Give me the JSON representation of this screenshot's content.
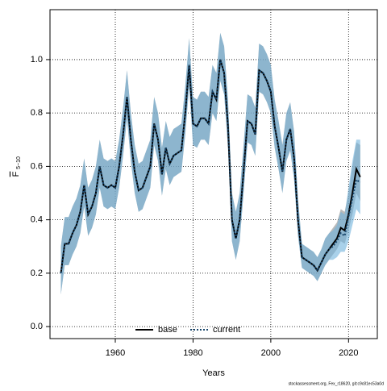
{
  "chart_data": {
    "type": "line",
    "x_label": "Years",
    "y_label": "F",
    "y_label_sub": "5−10",
    "footnote": "stockassessment.org, Fex_r18620, git:c9c81ec53a0d",
    "x": [
      1946,
      1947,
      1948,
      1949,
      1950,
      1951,
      1952,
      1953,
      1954,
      1955,
      1956,
      1957,
      1958,
      1959,
      1960,
      1961,
      1962,
      1963,
      1964,
      1965,
      1966,
      1967,
      1968,
      1969,
      1970,
      1971,
      1972,
      1973,
      1974,
      1975,
      1976,
      1977,
      1978,
      1979,
      1980,
      1981,
      1982,
      1983,
      1984,
      1985,
      1986,
      1987,
      1988,
      1989,
      1990,
      1991,
      1992,
      1993,
      1994,
      1995,
      1996,
      1997,
      1998,
      1999,
      2000,
      2001,
      2002,
      2003,
      2004,
      2005,
      2006,
      2007,
      2008,
      2009,
      2010,
      2011,
      2012,
      2013,
      2014,
      2015,
      2016,
      2017,
      2018,
      2019,
      2020,
      2021,
      2022,
      2023
    ],
    "series": [
      {
        "name": "base",
        "color": "#000000",
        "band_color": "#8c8c8c",
        "dash": false,
        "values": [
          0.2,
          0.31,
          0.31,
          0.35,
          0.38,
          0.43,
          0.53,
          0.42,
          0.45,
          0.5,
          0.6,
          0.53,
          0.52,
          0.53,
          0.52,
          0.6,
          0.72,
          0.86,
          0.7,
          0.58,
          0.51,
          0.52,
          0.56,
          0.6,
          0.76,
          0.7,
          0.57,
          0.67,
          0.61,
          0.64,
          0.65,
          0.66,
          0.8,
          0.98,
          0.76,
          0.75,
          0.78,
          0.78,
          0.76,
          0.88,
          0.85,
          1.0,
          0.95,
          0.75,
          0.4,
          0.33,
          0.4,
          0.58,
          0.77,
          0.76,
          0.72,
          0.96,
          0.95,
          0.92,
          0.88,
          0.75,
          0.67,
          0.58,
          0.7,
          0.74,
          0.63,
          0.4,
          0.26,
          0.25,
          0.24,
          0.23,
          0.21,
          0.24,
          0.27,
          0.29,
          0.31,
          0.33,
          0.37,
          0.36,
          0.42,
          0.5,
          0.59,
          0.56
        ],
        "lower": [
          0.12,
          0.23,
          0.23,
          0.27,
          0.3,
          0.35,
          0.45,
          0.34,
          0.37,
          0.42,
          0.52,
          0.45,
          0.44,
          0.45,
          0.44,
          0.52,
          0.64,
          0.78,
          0.62,
          0.5,
          0.43,
          0.44,
          0.48,
          0.52,
          0.68,
          0.62,
          0.49,
          0.59,
          0.53,
          0.56,
          0.57,
          0.58,
          0.72,
          0.9,
          0.68,
          0.67,
          0.7,
          0.7,
          0.68,
          0.8,
          0.77,
          0.92,
          0.87,
          0.67,
          0.32,
          0.25,
          0.32,
          0.5,
          0.69,
          0.68,
          0.64,
          0.88,
          0.87,
          0.84,
          0.8,
          0.67,
          0.59,
          0.5,
          0.62,
          0.66,
          0.55,
          0.34,
          0.22,
          0.21,
          0.2,
          0.19,
          0.17,
          0.2,
          0.23,
          0.25,
          0.27,
          0.29,
          0.32,
          0.31,
          0.36,
          0.42,
          0.5,
          0.47
        ],
        "upper": [
          0.3,
          0.41,
          0.41,
          0.45,
          0.48,
          0.53,
          0.63,
          0.52,
          0.55,
          0.6,
          0.7,
          0.63,
          0.62,
          0.63,
          0.62,
          0.7,
          0.82,
          0.96,
          0.8,
          0.68,
          0.61,
          0.62,
          0.66,
          0.7,
          0.86,
          0.8,
          0.67,
          0.77,
          0.71,
          0.74,
          0.75,
          0.76,
          0.9,
          1.08,
          0.86,
          0.85,
          0.88,
          0.88,
          0.86,
          0.98,
          0.95,
          1.1,
          1.05,
          0.85,
          0.5,
          0.43,
          0.5,
          0.68,
          0.87,
          0.86,
          0.82,
          1.06,
          1.05,
          1.02,
          0.98,
          0.85,
          0.77,
          0.68,
          0.8,
          0.84,
          0.73,
          0.48,
          0.31,
          0.3,
          0.29,
          0.28,
          0.26,
          0.29,
          0.33,
          0.35,
          0.37,
          0.39,
          0.44,
          0.43,
          0.5,
          0.6,
          0.69,
          0.68
        ]
      },
      {
        "name": "current",
        "color": "#17456b",
        "band_color": "#6fb3dc",
        "dash": true,
        "values": [
          0.2,
          0.31,
          0.31,
          0.35,
          0.38,
          0.43,
          0.53,
          0.42,
          0.45,
          0.5,
          0.6,
          0.53,
          0.52,
          0.53,
          0.52,
          0.6,
          0.72,
          0.86,
          0.7,
          0.58,
          0.51,
          0.52,
          0.56,
          0.6,
          0.76,
          0.7,
          0.57,
          0.67,
          0.61,
          0.64,
          0.65,
          0.66,
          0.8,
          0.98,
          0.76,
          0.75,
          0.78,
          0.78,
          0.76,
          0.88,
          0.85,
          1.0,
          0.95,
          0.75,
          0.4,
          0.33,
          0.4,
          0.58,
          0.77,
          0.76,
          0.72,
          0.96,
          0.95,
          0.92,
          0.88,
          0.75,
          0.67,
          0.58,
          0.7,
          0.74,
          0.63,
          0.4,
          0.26,
          0.25,
          0.24,
          0.23,
          0.21,
          0.24,
          0.27,
          0.29,
          0.3,
          0.32,
          0.35,
          0.34,
          0.41,
          0.48,
          0.55,
          0.54
        ],
        "lower": [
          0.12,
          0.23,
          0.23,
          0.27,
          0.3,
          0.35,
          0.45,
          0.34,
          0.37,
          0.42,
          0.52,
          0.45,
          0.44,
          0.45,
          0.44,
          0.52,
          0.64,
          0.78,
          0.62,
          0.5,
          0.43,
          0.44,
          0.48,
          0.52,
          0.68,
          0.62,
          0.49,
          0.59,
          0.53,
          0.56,
          0.57,
          0.58,
          0.72,
          0.9,
          0.68,
          0.67,
          0.7,
          0.7,
          0.68,
          0.8,
          0.77,
          0.92,
          0.87,
          0.67,
          0.32,
          0.25,
          0.32,
          0.5,
          0.69,
          0.68,
          0.64,
          0.88,
          0.87,
          0.84,
          0.8,
          0.67,
          0.59,
          0.5,
          0.62,
          0.66,
          0.55,
          0.34,
          0.22,
          0.21,
          0.2,
          0.19,
          0.17,
          0.2,
          0.23,
          0.25,
          0.25,
          0.26,
          0.28,
          0.28,
          0.32,
          0.38,
          0.44,
          0.42
        ],
        "upper": [
          0.3,
          0.41,
          0.41,
          0.45,
          0.48,
          0.53,
          0.63,
          0.52,
          0.55,
          0.6,
          0.7,
          0.63,
          0.62,
          0.63,
          0.62,
          0.7,
          0.82,
          0.96,
          0.8,
          0.68,
          0.61,
          0.62,
          0.66,
          0.7,
          0.86,
          0.8,
          0.67,
          0.77,
          0.71,
          0.74,
          0.75,
          0.76,
          0.9,
          1.08,
          0.86,
          0.85,
          0.88,
          0.88,
          0.86,
          0.98,
          0.95,
          1.1,
          1.05,
          0.85,
          0.5,
          0.43,
          0.5,
          0.68,
          0.87,
          0.86,
          0.82,
          1.06,
          1.05,
          1.02,
          0.98,
          0.85,
          0.77,
          0.68,
          0.8,
          0.84,
          0.73,
          0.48,
          0.31,
          0.3,
          0.29,
          0.28,
          0.26,
          0.29,
          0.33,
          0.35,
          0.36,
          0.38,
          0.43,
          0.42,
          0.52,
          0.62,
          0.7,
          0.7
        ]
      }
    ],
    "xlim": [
      1943.2,
      2027.4
    ],
    "ylim": [
      -0.045,
      1.187
    ],
    "xticks": [
      1960,
      1980,
      2000,
      2020
    ],
    "yticks": [
      {
        "value": 0,
        "label": "0.0"
      },
      0.2,
      0.4,
      0.6,
      0.8,
      {
        "value": 1,
        "label": "1.0"
      }
    ],
    "grid": true,
    "legend": "bottom"
  }
}
